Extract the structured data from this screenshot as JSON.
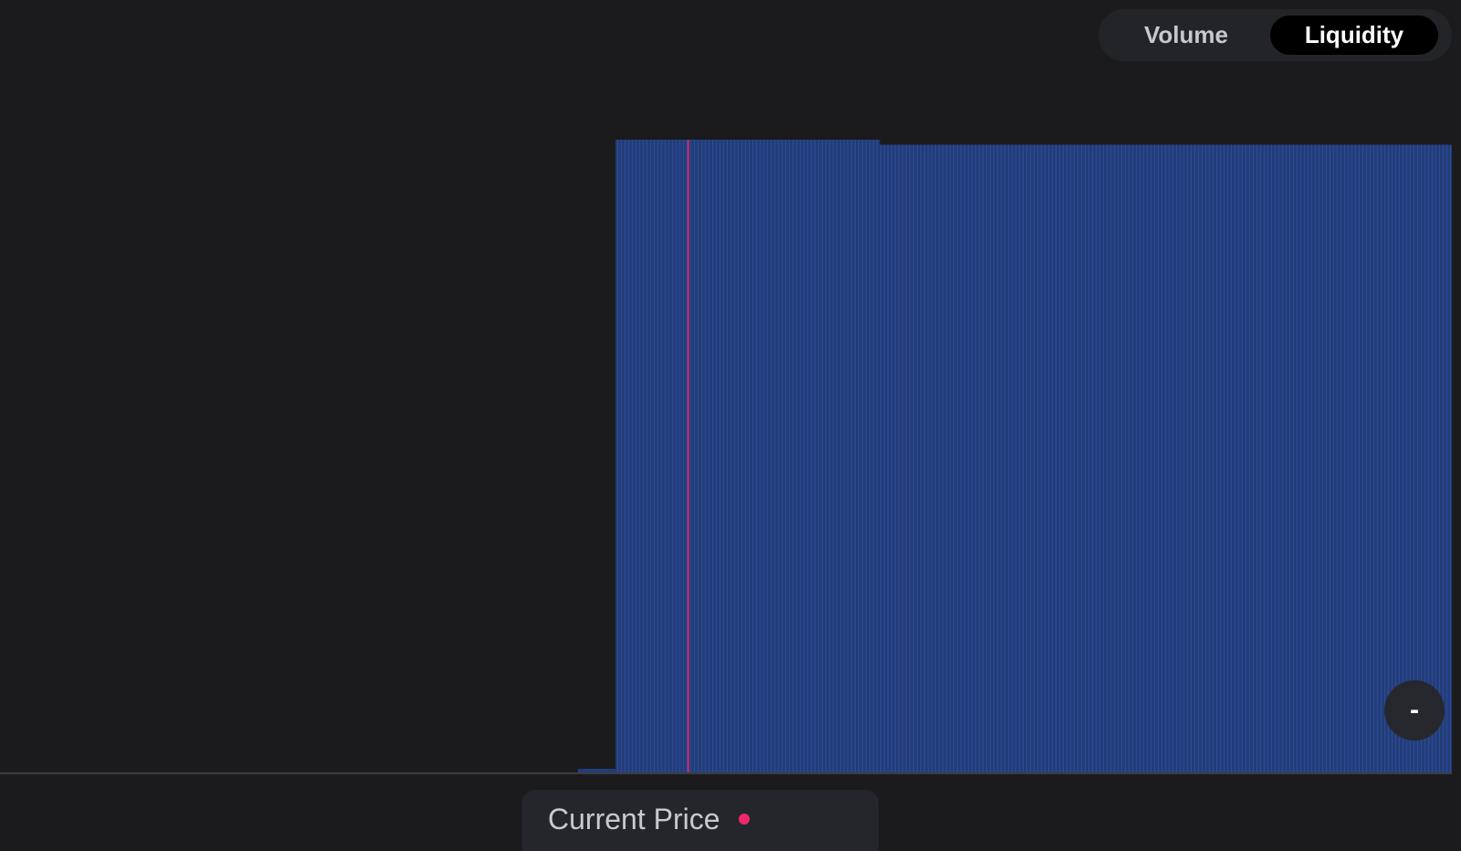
{
  "toggle": {
    "options": [
      {
        "label": "Volume",
        "selected": false
      },
      {
        "label": "Liquidity",
        "selected": true
      }
    ]
  },
  "zoom": {
    "zoom_out_label": "-"
  },
  "legend": {
    "current_price_label": "Current Price",
    "current_price_color": "#f0286b"
  },
  "colors": {
    "background": "#1b1b1e",
    "bar_fill": "#233d7a",
    "bar_line": "#2e4f98",
    "current_price_line": "#f0286b",
    "baseline": "#3a3c42"
  },
  "chart_data": {
    "type": "bar",
    "title": "",
    "xlabel": "",
    "ylabel": "",
    "ylim": [
      0,
      1
    ],
    "segments": [
      {
        "x_start": 0.0,
        "x_end": 0.398,
        "value": 0.0
      },
      {
        "x_start": 0.398,
        "x_end": 0.424,
        "value": 0.005
      },
      {
        "x_start": 0.424,
        "x_end": 0.606,
        "value": 1.0
      },
      {
        "x_start": 0.606,
        "x_end": 1.0,
        "value": 0.992
      }
    ],
    "current_price_x": 0.474
  }
}
